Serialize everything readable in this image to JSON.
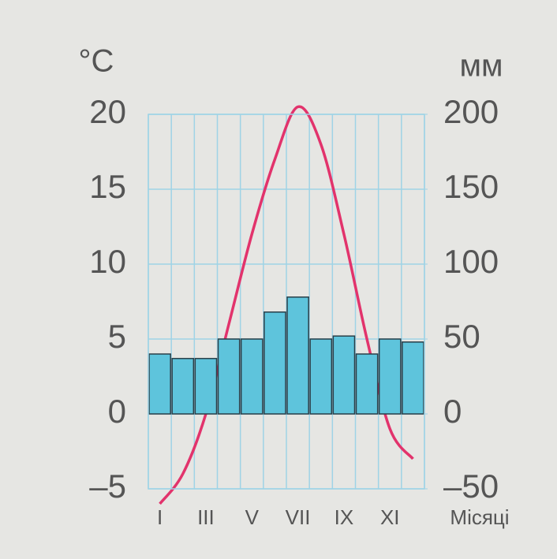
{
  "chart_data": {
    "type": "climate",
    "y_unit": "°C",
    "y2_unit": "мм",
    "x_title": "Місяці",
    "categories": [
      "I",
      null,
      "III",
      null,
      "V",
      null,
      "VII",
      null,
      "IX",
      null,
      "XI",
      null
    ],
    "series": [
      {
        "name": "temperature",
        "type": "line",
        "color": "#e2336c",
        "axis": "y",
        "values": [
          -6,
          -4,
          0,
          6,
          12,
          17,
          20.5,
          18,
          12,
          5,
          -1,
          -3
        ]
      },
      {
        "name": "precipitation",
        "type": "bar",
        "color": "#5ec4dc",
        "axis": "y2",
        "values": [
          40,
          37,
          37,
          50,
          50,
          68,
          78,
          50,
          52,
          40,
          50,
          48
        ]
      }
    ],
    "ylim": [
      -5,
      20
    ],
    "yticks": [
      {
        "value": -5,
        "label": "–5"
      },
      0,
      5,
      10,
      15,
      20
    ],
    "y2lim": [
      -50,
      200
    ],
    "y2ticks": [
      {
        "value": -50,
        "label": "–50"
      },
      0,
      50,
      100,
      150,
      200
    ],
    "grid": true
  }
}
